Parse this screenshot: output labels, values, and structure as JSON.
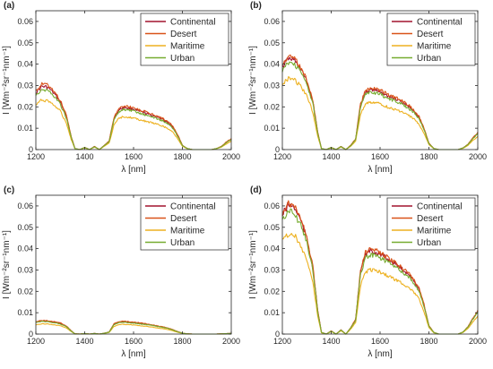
{
  "figure": {
    "layout": "2x2 grid",
    "series_colors": {
      "Continental": "#A2142F",
      "Desert": "#D95319",
      "Maritime": "#EDB120",
      "Urban": "#77AC30"
    }
  },
  "chart_data": [
    {
      "type": "line",
      "panel_label": "(a)",
      "xlabel": "λ [nm]",
      "ylabel": "I [Wm⁻²sr⁻¹nm⁻¹]",
      "xlim": [
        1200,
        2000
      ],
      "ylim": [
        0,
        0.065
      ],
      "xticks": [
        1200,
        1400,
        1600,
        1800,
        2000
      ],
      "yticks": [
        0,
        0.01,
        0.02,
        0.03,
        0.04,
        0.05,
        0.06
      ],
      "ytick_labels": [
        "0",
        "0.01",
        "0.02",
        "0.03",
        "0.04",
        "0.05",
        "0.06"
      ],
      "grid": false,
      "legend": "top-right",
      "series_order": [
        "Continental",
        "Desert",
        "Maritime",
        "Urban"
      ],
      "x": [
        1200,
        1225,
        1250,
        1275,
        1300,
        1325,
        1345,
        1360,
        1380,
        1400,
        1420,
        1440,
        1460,
        1480,
        1500,
        1520,
        1540,
        1560,
        1580,
        1600,
        1620,
        1640,
        1660,
        1680,
        1700,
        1720,
        1740,
        1760,
        1780,
        1800,
        1820,
        1840,
        1860,
        1880,
        1900,
        1920,
        1940,
        1960,
        1980,
        2000
      ],
      "series": [
        {
          "name": "Continental",
          "values": [
            0.0275,
            0.0305,
            0.03,
            0.027,
            0.023,
            0.016,
            0.006,
            0.0005,
            0.0,
            0.001,
            0.0,
            0.0015,
            0.0,
            0.002,
            0.004,
            0.015,
            0.019,
            0.0205,
            0.02,
            0.0195,
            0.0185,
            0.018,
            0.017,
            0.0165,
            0.0155,
            0.0145,
            0.013,
            0.011,
            0.007,
            0.002,
            0.0005,
            0.0,
            0.0,
            0.0,
            0.0,
            0.0,
            0.0005,
            0.0015,
            0.0035,
            0.005
          ]
        },
        {
          "name": "Desert",
          "values": [
            0.0285,
            0.0315,
            0.031,
            0.028,
            0.0238,
            0.0165,
            0.0062,
            0.0005,
            0.0,
            0.001,
            0.0,
            0.0015,
            0.0,
            0.002,
            0.0042,
            0.0155,
            0.0197,
            0.0212,
            0.0207,
            0.0202,
            0.0192,
            0.0186,
            0.0176,
            0.0171,
            0.016,
            0.015,
            0.0135,
            0.0114,
            0.0073,
            0.0021,
            0.0005,
            0.0,
            0.0,
            0.0,
            0.0,
            0.0,
            0.0005,
            0.0016,
            0.0037,
            0.0052
          ]
        },
        {
          "name": "Maritime",
          "values": [
            0.0215,
            0.024,
            0.0235,
            0.0215,
            0.0185,
            0.0128,
            0.0048,
            0.0004,
            0.0,
            0.0008,
            0.0,
            0.0012,
            0.0,
            0.0016,
            0.0032,
            0.0118,
            0.015,
            0.016,
            0.0156,
            0.0152,
            0.0145,
            0.014,
            0.0133,
            0.0128,
            0.012,
            0.0113,
            0.0101,
            0.0085,
            0.0054,
            0.0016,
            0.0004,
            0.0,
            0.0,
            0.0,
            0.0,
            0.0,
            0.0004,
            0.0012,
            0.0027,
            0.004
          ]
        },
        {
          "name": "Urban",
          "values": [
            0.0265,
            0.029,
            0.0285,
            0.0258,
            0.022,
            0.0153,
            0.0057,
            0.0005,
            0.0,
            0.001,
            0.0,
            0.0014,
            0.0,
            0.0019,
            0.0038,
            0.0143,
            0.018,
            0.0195,
            0.019,
            0.0185,
            0.0176,
            0.017,
            0.0161,
            0.0157,
            0.0147,
            0.0138,
            0.0124,
            0.0104,
            0.0066,
            0.0019,
            0.0005,
            0.0,
            0.0,
            0.0,
            0.0,
            0.0,
            0.0005,
            0.0014,
            0.0033,
            0.0048
          ]
        }
      ]
    },
    {
      "type": "line",
      "panel_label": "(b)",
      "xlabel": "λ [nm]",
      "ylabel": "I [Wm⁻²sr⁻¹nm⁻¹]",
      "xlim": [
        1200,
        2000
      ],
      "ylim": [
        0,
        0.065
      ],
      "xticks": [
        1200,
        1400,
        1600,
        1800,
        2000
      ],
      "yticks": [
        0,
        0.01,
        0.02,
        0.03,
        0.04,
        0.05,
        0.06
      ],
      "ytick_labels": [
        "0",
        "0.01",
        "0.02",
        "0.03",
        "0.04",
        "0.05",
        "0.06"
      ],
      "grid": false,
      "legend": "top-right",
      "series_order": [
        "Continental",
        "Desert",
        "Maritime",
        "Urban"
      ],
      "x": [
        1200,
        1225,
        1250,
        1275,
        1300,
        1325,
        1345,
        1360,
        1380,
        1400,
        1420,
        1440,
        1460,
        1480,
        1500,
        1520,
        1540,
        1560,
        1580,
        1600,
        1620,
        1640,
        1660,
        1680,
        1700,
        1720,
        1740,
        1760,
        1780,
        1800,
        1820,
        1840,
        1860,
        1880,
        1900,
        1920,
        1940,
        1960,
        1980,
        2000
      ],
      "series": [
        {
          "name": "Continental",
          "values": [
            0.04,
            0.044,
            0.043,
            0.039,
            0.033,
            0.023,
            0.008,
            0.0005,
            0.0,
            0.001,
            0.0,
            0.0015,
            0.0,
            0.002,
            0.005,
            0.0215,
            0.0275,
            0.029,
            0.0285,
            0.028,
            0.0265,
            0.0255,
            0.0245,
            0.0235,
            0.022,
            0.0205,
            0.0185,
            0.0155,
            0.01,
            0.003,
            0.0005,
            0.0,
            0.0,
            0.0,
            0.0,
            0.0,
            0.0008,
            0.0025,
            0.0055,
            0.008
          ]
        },
        {
          "name": "Desert",
          "values": [
            0.041,
            0.045,
            0.044,
            0.0398,
            0.0338,
            0.0236,
            0.0082,
            0.0005,
            0.0,
            0.001,
            0.0,
            0.0015,
            0.0,
            0.0021,
            0.0052,
            0.0221,
            0.0283,
            0.0298,
            0.0293,
            0.0288,
            0.0273,
            0.0262,
            0.0252,
            0.0242,
            0.0226,
            0.0211,
            0.019,
            0.0159,
            0.0103,
            0.0031,
            0.0005,
            0.0,
            0.0,
            0.0,
            0.0,
            0.0,
            0.0008,
            0.0026,
            0.0057,
            0.0082
          ]
        },
        {
          "name": "Maritime",
          "values": [
            0.0315,
            0.0345,
            0.0338,
            0.0305,
            0.026,
            0.018,
            0.0063,
            0.0004,
            0.0,
            0.0008,
            0.0,
            0.0012,
            0.0,
            0.0016,
            0.004,
            0.017,
            0.0218,
            0.023,
            0.0225,
            0.0221,
            0.021,
            0.0202,
            0.0194,
            0.0186,
            0.0174,
            0.0162,
            0.0146,
            0.0122,
            0.0079,
            0.0024,
            0.0004,
            0.0,
            0.0,
            0.0,
            0.0,
            0.0,
            0.0006,
            0.002,
            0.0044,
            0.0063
          ]
        },
        {
          "name": "Urban",
          "values": [
            0.0385,
            0.042,
            0.0412,
            0.0374,
            0.0317,
            0.0221,
            0.0077,
            0.0005,
            0.0,
            0.001,
            0.0,
            0.0014,
            0.0,
            0.0019,
            0.0048,
            0.0206,
            0.0264,
            0.0278,
            0.0273,
            0.0268,
            0.0254,
            0.0244,
            0.0235,
            0.0225,
            0.0211,
            0.0197,
            0.0177,
            0.0149,
            0.0096,
            0.0029,
            0.0005,
            0.0,
            0.0,
            0.0,
            0.0,
            0.0,
            0.0008,
            0.0024,
            0.0053,
            0.0077
          ]
        }
      ]
    },
    {
      "type": "line",
      "panel_label": "(c)",
      "xlabel": "λ [nm]",
      "ylabel": "I [Wm⁻²sr⁻¹nm⁻¹]",
      "xlim": [
        1200,
        2000
      ],
      "ylim": [
        0,
        0.065
      ],
      "xticks": [
        1200,
        1400,
        1600,
        1800,
        2000
      ],
      "yticks": [
        0,
        0.01,
        0.02,
        0.03,
        0.04,
        0.05,
        0.06
      ],
      "ytick_labels": [
        "0",
        "0.01",
        "0.02",
        "0.03",
        "0.04",
        "0.05",
        "0.06"
      ],
      "grid": false,
      "legend": "top-right",
      "series_order": [
        "Continental",
        "Desert",
        "Maritime",
        "Urban"
      ],
      "x": [
        1200,
        1225,
        1250,
        1275,
        1300,
        1325,
        1345,
        1360,
        1380,
        1400,
        1420,
        1440,
        1460,
        1480,
        1500,
        1520,
        1540,
        1560,
        1580,
        1600,
        1620,
        1640,
        1660,
        1680,
        1700,
        1720,
        1740,
        1760,
        1780,
        1800,
        1820,
        1840,
        1860,
        1880,
        1900,
        1920,
        1940,
        1960,
        1980,
        2000
      ],
      "series": [
        {
          "name": "Continental",
          "values": [
            0.0058,
            0.0064,
            0.0062,
            0.0058,
            0.0052,
            0.0038,
            0.0015,
            0.0001,
            0.0,
            0.0002,
            0.0,
            0.0003,
            0.0,
            0.0004,
            0.001,
            0.0048,
            0.0058,
            0.006,
            0.0058,
            0.0056,
            0.0053,
            0.005,
            0.0046,
            0.0043,
            0.0038,
            0.0034,
            0.0028,
            0.0021,
            0.0012,
            0.0004,
            0.0001,
            0.0,
            0.0,
            0.0,
            0.0,
            0.0,
            0.0,
            0.0001,
            0.0002,
            0.0003
          ]
        },
        {
          "name": "Desert",
          "values": [
            0.006,
            0.0066,
            0.0064,
            0.006,
            0.0054,
            0.0039,
            0.0016,
            0.0001,
            0.0,
            0.0002,
            0.0,
            0.0003,
            0.0,
            0.0004,
            0.001,
            0.005,
            0.006,
            0.0062,
            0.006,
            0.0058,
            0.0055,
            0.0052,
            0.0048,
            0.0044,
            0.0039,
            0.0035,
            0.0029,
            0.0022,
            0.0012,
            0.0004,
            0.0001,
            0.0,
            0.0,
            0.0,
            0.0,
            0.0,
            0.0,
            0.0001,
            0.0002,
            0.0003
          ]
        },
        {
          "name": "Maritime",
          "values": [
            0.0045,
            0.005,
            0.0048,
            0.0045,
            0.004,
            0.0029,
            0.0012,
            0.0001,
            0.0,
            0.0002,
            0.0,
            0.0002,
            0.0,
            0.0003,
            0.0008,
            0.0037,
            0.0045,
            0.0047,
            0.0045,
            0.0044,
            0.0041,
            0.0039,
            0.0036,
            0.0033,
            0.0029,
            0.0026,
            0.0022,
            0.0016,
            0.0009,
            0.0003,
            0.0001,
            0.0,
            0.0,
            0.0,
            0.0,
            0.0,
            0.0,
            0.0001,
            0.0002,
            0.0002
          ]
        },
        {
          "name": "Urban",
          "values": [
            0.0055,
            0.0061,
            0.0059,
            0.0055,
            0.0049,
            0.0036,
            0.0014,
            0.0001,
            0.0,
            0.0002,
            0.0,
            0.0003,
            0.0,
            0.0004,
            0.0009,
            0.0046,
            0.0055,
            0.0057,
            0.0055,
            0.0053,
            0.005,
            0.0047,
            0.0044,
            0.0041,
            0.0036,
            0.0032,
            0.0027,
            0.002,
            0.0011,
            0.0004,
            0.0001,
            0.0,
            0.0,
            0.0,
            0.0,
            0.0,
            0.0,
            0.0001,
            0.0002,
            0.0003
          ]
        }
      ]
    },
    {
      "type": "line",
      "panel_label": "(d)",
      "xlabel": "λ [nm]",
      "ylabel": "I [Wm⁻²sr⁻¹nm⁻¹]",
      "xlim": [
        1200,
        2000
      ],
      "ylim": [
        0,
        0.065
      ],
      "xticks": [
        1200,
        1400,
        1600,
        1800,
        2000
      ],
      "yticks": [
        0,
        0.01,
        0.02,
        0.03,
        0.04,
        0.05,
        0.06
      ],
      "ytick_labels": [
        "0",
        "0.01",
        "0.02",
        "0.03",
        "0.04",
        "0.05",
        "0.06"
      ],
      "grid": false,
      "legend": "top-right",
      "series_order": [
        "Continental",
        "Desert",
        "Maritime",
        "Urban"
      ],
      "x": [
        1200,
        1225,
        1250,
        1275,
        1300,
        1325,
        1345,
        1360,
        1380,
        1400,
        1420,
        1440,
        1460,
        1480,
        1500,
        1520,
        1540,
        1560,
        1580,
        1600,
        1620,
        1640,
        1660,
        1680,
        1700,
        1720,
        1740,
        1760,
        1780,
        1800,
        1820,
        1840,
        1860,
        1880,
        1900,
        1920,
        1940,
        1960,
        1980,
        2000
      ],
      "series": [
        {
          "name": "Continental",
          "values": [
            0.0575,
            0.0625,
            0.061,
            0.055,
            0.046,
            0.032,
            0.011,
            0.0008,
            0.0,
            0.0015,
            0.0,
            0.002,
            0.0,
            0.003,
            0.007,
            0.03,
            0.0385,
            0.04,
            0.0395,
            0.0385,
            0.037,
            0.0355,
            0.034,
            0.0325,
            0.0305,
            0.0285,
            0.0255,
            0.0215,
            0.014,
            0.004,
            0.0008,
            0.0,
            0.0,
            0.0,
            0.0,
            0.0,
            0.001,
            0.0035,
            0.0075,
            0.011
          ]
        },
        {
          "name": "Desert",
          "values": [
            0.0585,
            0.0635,
            0.062,
            0.0559,
            0.0468,
            0.0326,
            0.0112,
            0.0008,
            0.0,
            0.0015,
            0.0,
            0.002,
            0.0,
            0.0031,
            0.0072,
            0.0306,
            0.0393,
            0.0408,
            0.0403,
            0.0393,
            0.0377,
            0.0362,
            0.0347,
            0.0331,
            0.0311,
            0.0291,
            0.026,
            0.0219,
            0.0143,
            0.0041,
            0.0008,
            0.0,
            0.0,
            0.0,
            0.0,
            0.0,
            0.001,
            0.0036,
            0.0077,
            0.0112
          ]
        },
        {
          "name": "Maritime",
          "values": [
            0.045,
            0.0485,
            0.0475,
            0.043,
            0.036,
            0.025,
            0.0086,
            0.0006,
            0.0,
            0.0012,
            0.0,
            0.0016,
            0.0,
            0.0024,
            0.0055,
            0.0235,
            0.03,
            0.0312,
            0.0308,
            0.03,
            0.0288,
            0.0277,
            0.0265,
            0.0253,
            0.0238,
            0.0222,
            0.0199,
            0.0168,
            0.0109,
            0.0031,
            0.0006,
            0.0,
            0.0,
            0.0,
            0.0,
            0.0,
            0.0008,
            0.0027,
            0.0059,
            0.0086
          ]
        },
        {
          "name": "Urban",
          "values": [
            0.055,
            0.0598,
            0.0584,
            0.0527,
            0.0441,
            0.0307,
            0.0105,
            0.0008,
            0.0,
            0.0014,
            0.0,
            0.0019,
            0.0,
            0.0029,
            0.0067,
            0.0288,
            0.0369,
            0.0383,
            0.0378,
            0.0369,
            0.0354,
            0.034,
            0.0326,
            0.0311,
            0.0292,
            0.0273,
            0.0244,
            0.0206,
            0.0134,
            0.0038,
            0.0008,
            0.0,
            0.0,
            0.0,
            0.0,
            0.0,
            0.001,
            0.0034,
            0.0072,
            0.0105
          ]
        }
      ]
    }
  ]
}
